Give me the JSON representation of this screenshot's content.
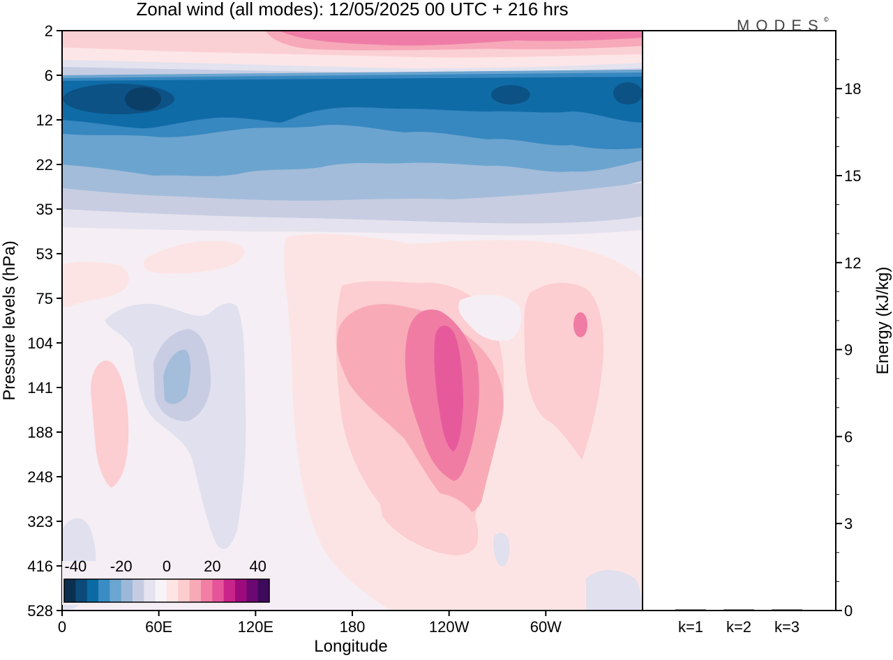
{
  "title": "Zonal wind (all modes):  12/05/2025  00 UTC  + 216 hrs",
  "logo": "MODES",
  "logo_mark": "©",
  "chart_data": [
    {
      "type": "heatmap",
      "title": "Zonal wind (all modes):  12/05/2025  00 UTC  + 216 hrs",
      "xlabel": "Longitude",
      "ylabel": "Pressure levels (hPa)",
      "x_ticks": [
        "0",
        "60E",
        "120E",
        "180",
        "120W",
        "60W"
      ],
      "x_tick_degrees": [
        0,
        60,
        120,
        180,
        240,
        300
      ],
      "xlim": [
        0,
        360
      ],
      "y_ticks": [
        "2",
        "6",
        "12",
        "22",
        "35",
        "53",
        "75",
        "104",
        "141",
        "188",
        "248",
        "323",
        "416",
        "528"
      ],
      "y_scale": "log-like (pressure, top = 2 hPa, bottom = 528 hPa)",
      "colorbar": {
        "labels": [
          "-40",
          "-20",
          "0",
          "20",
          "40"
        ],
        "range": [
          -45,
          45
        ],
        "step": 5,
        "colors": [
          "#0b2f4f",
          "#0c4a7a",
          "#0b6aa3",
          "#3a8cc4",
          "#6aa6cf",
          "#9bb8d8",
          "#c5cce2",
          "#e4e3ef",
          "#f7f3f7",
          "#ffe4e4",
          "#fccccf",
          "#f7a9b6",
          "#f27ea3",
          "#e5549b",
          "#c9248a",
          "#9e0a7c",
          "#6d0872",
          "#3e0a5e"
        ]
      },
      "field_regions": [
        {
          "lon": [
            0,
            360
          ],
          "p": [
            2,
            4
          ],
          "value": 15
        },
        {
          "lon": [
            0,
            360
          ],
          "p": [
            5,
            7
          ],
          "value": -20
        },
        {
          "lon": [
            0,
            360
          ],
          "p": [
            7,
            12
          ],
          "value": -37
        },
        {
          "lon": [
            0,
            360
          ],
          "p": [
            12,
            22
          ],
          "value": -27
        },
        {
          "lon": [
            0,
            360
          ],
          "p": [
            22,
            35
          ],
          "value": -12
        },
        {
          "lon": [
            180,
            300
          ],
          "p": [
            53,
            75
          ],
          "value": 7
        },
        {
          "lon": [
            200,
            280
          ],
          "p": [
            75,
            323
          ],
          "value": 15
        },
        {
          "lon": [
            230,
            265
          ],
          "p": [
            104,
            188
          ],
          "value": 27
        },
        {
          "lon": [
            55,
            90
          ],
          "p": [
            104,
            188
          ],
          "value": -12
        },
        {
          "lon": [
            20,
            40
          ],
          "p": [
            141,
            248
          ],
          "value": 8
        }
      ]
    },
    {
      "type": "bar",
      "categories": [
        "k=1",
        "k=2",
        "k=3"
      ],
      "values": [
        0.02,
        0.01,
        0.01
      ],
      "ylabel": "Energy (kJ/kg)",
      "ylim": [
        0,
        20
      ],
      "y_ticks": [
        0,
        3,
        6,
        9,
        12,
        15,
        18
      ]
    }
  ]
}
